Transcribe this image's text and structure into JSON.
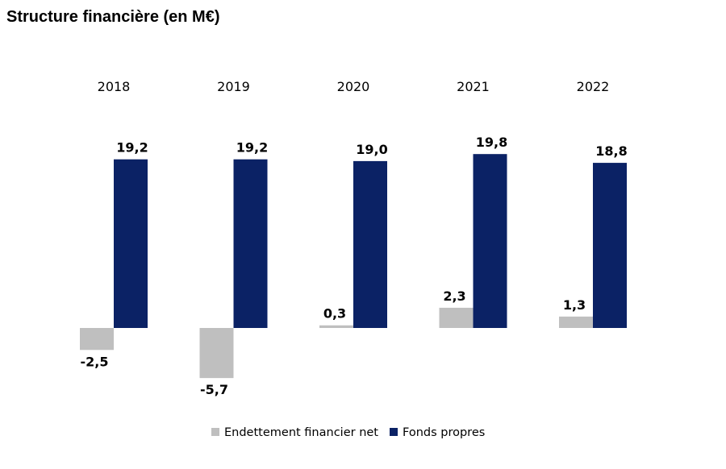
{
  "page": {
    "title": "Structure financière (en M€)"
  },
  "chart_data": {
    "type": "bar",
    "title": "Structure financière (en M€)",
    "categories": [
      "2018",
      "2019",
      "2020",
      "2021",
      "2022"
    ],
    "series": [
      {
        "name": "Endettement financier net",
        "color": "#bfbfbf",
        "values": [
          -2.5,
          -5.7,
          0.3,
          2.3,
          1.3
        ],
        "labels": [
          "-2,5",
          "-5,7",
          "0,3",
          "2,3",
          "1,3"
        ]
      },
      {
        "name": "Fonds propres",
        "color": "#0b2265",
        "values": [
          19.2,
          19.2,
          19.0,
          19.8,
          18.8
        ],
        "labels": [
          "19,2",
          "19,2",
          "19,0",
          "19,8",
          "18,8"
        ]
      }
    ],
    "category_labels_position": "top",
    "legend": "bottom-center",
    "grid": false
  }
}
